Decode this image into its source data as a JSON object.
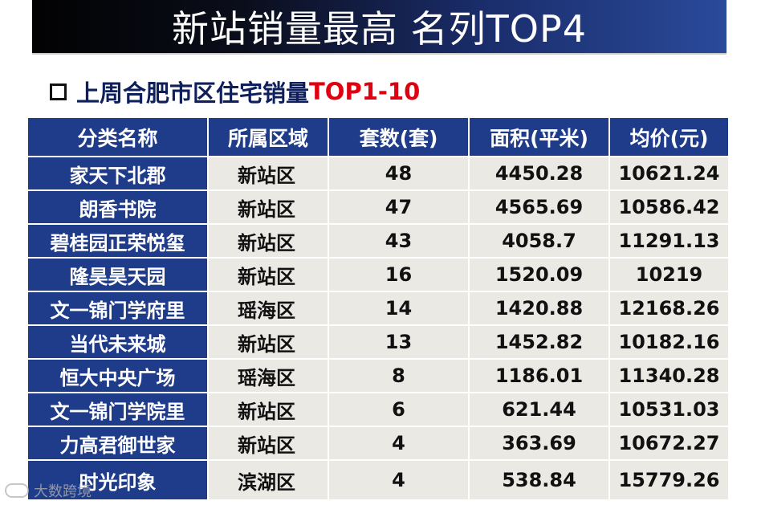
{
  "banner": {
    "title": "新站销量最高 名列TOP4"
  },
  "subtitle": {
    "main": "上周合肥市区住宅销量",
    "accent": "TOP1-10"
  },
  "table": {
    "headers": [
      "分类名称",
      "所属区域",
      "套数(套)",
      "面积(平米)",
      "均价(元)"
    ],
    "rows": [
      {
        "name": "家天下北郡",
        "region": "新站区",
        "units": "48",
        "area": "4450.28",
        "price": "10621.24"
      },
      {
        "name": "朗香书院",
        "region": "新站区",
        "units": "47",
        "area": "4565.69",
        "price": "10586.42"
      },
      {
        "name": "碧桂园正荣悦玺",
        "region": "新站区",
        "units": "43",
        "area": "4058.7",
        "price": "11291.13"
      },
      {
        "name": "隆昊昊天园",
        "region": "新站区",
        "units": "16",
        "area": "1520.09",
        "price": "10219"
      },
      {
        "name": "文一锦门学府里",
        "region": "瑶海区",
        "units": "14",
        "area": "1420.88",
        "price": "12168.26"
      },
      {
        "name": "当代未来城",
        "region": "新站区",
        "units": "13",
        "area": "1452.82",
        "price": "10182.16"
      },
      {
        "name": "恒大中央广场",
        "region": "瑶海区",
        "units": "8",
        "area": "1186.01",
        "price": "11340.28"
      },
      {
        "name": "文一锦门学院里",
        "region": "新站区",
        "units": "6",
        "area": "621.44",
        "price": "10531.03"
      },
      {
        "name": "力高君御世家",
        "region": "新站区",
        "units": "4",
        "area": "363.69",
        "price": "10672.27"
      },
      {
        "name": "时光印象",
        "region": "滨湖区",
        "units": "4",
        "area": "538.84",
        "price": "15779.26"
      }
    ]
  },
  "watermark": {
    "text": "大数跨境"
  },
  "colors": {
    "header_blue": "#1f3c8a",
    "cell_gray": "#ebe9e4",
    "accent_red": "#e00010",
    "subtitle_navy": "#0f1f5c"
  }
}
